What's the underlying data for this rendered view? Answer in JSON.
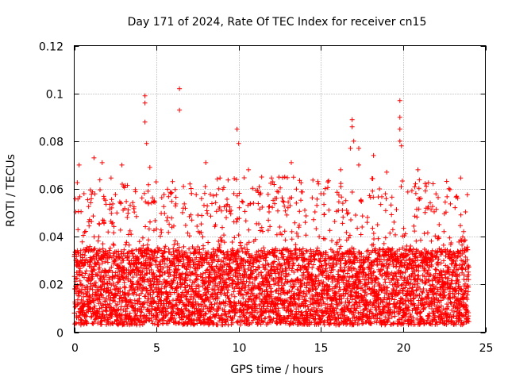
{
  "chart_data": {
    "type": "scatter",
    "title": "Day 171 of 2024, Rate Of TEC Index for receiver cn15",
    "xlabel": "GPS time / hours",
    "ylabel": "ROTI / TECUs",
    "xlim": [
      0,
      25
    ],
    "ylim": [
      0,
      0.12
    ],
    "xticks": [
      0,
      5,
      10,
      15,
      20,
      25
    ],
    "xtick_labels": [
      "0",
      "5",
      "10",
      "15",
      "20",
      "25"
    ],
    "yticks": [
      0,
      0.02,
      0.04,
      0.06,
      0.08,
      0.1,
      0.12
    ],
    "ytick_labels": [
      "0",
      "0.02",
      "0.04",
      "0.06",
      "0.08",
      "0.1",
      "0.12"
    ],
    "grid": true,
    "marker": "plus",
    "marker_color": "#ff0000",
    "data_time_range_hours": [
      0,
      24
    ],
    "typical_value_range": [
      0.003,
      0.035
    ],
    "point_density": "dense (~thousands of points)",
    "notable_points": [
      {
        "x": 4.3,
        "y": 0.099
      },
      {
        "x": 4.3,
        "y": 0.096
      },
      {
        "x": 4.3,
        "y": 0.088
      },
      {
        "x": 4.4,
        "y": 0.079
      },
      {
        "x": 6.4,
        "y": 0.102
      },
      {
        "x": 6.4,
        "y": 0.093
      },
      {
        "x": 8.0,
        "y": 0.071
      },
      {
        "x": 9.9,
        "y": 0.085
      },
      {
        "x": 10.0,
        "y": 0.079
      },
      {
        "x": 10.6,
        "y": 0.068
      },
      {
        "x": 11.4,
        "y": 0.065
      },
      {
        "x": 12.8,
        "y": 0.065
      },
      {
        "x": 13.2,
        "y": 0.071
      },
      {
        "x": 15.0,
        "y": 0.058
      },
      {
        "x": 16.2,
        "y": 0.068
      },
      {
        "x": 16.9,
        "y": 0.089
      },
      {
        "x": 16.9,
        "y": 0.086
      },
      {
        "x": 17.0,
        "y": 0.08
      },
      {
        "x": 16.8,
        "y": 0.077
      },
      {
        "x": 17.3,
        "y": 0.077
      },
      {
        "x": 17.3,
        "y": 0.07
      },
      {
        "x": 18.2,
        "y": 0.074
      },
      {
        "x": 19.0,
        "y": 0.067
      },
      {
        "x": 19.8,
        "y": 0.097
      },
      {
        "x": 19.8,
        "y": 0.09
      },
      {
        "x": 19.8,
        "y": 0.085
      },
      {
        "x": 19.8,
        "y": 0.08
      },
      {
        "x": 19.9,
        "y": 0.078
      },
      {
        "x": 20.9,
        "y": 0.068
      },
      {
        "x": 0.3,
        "y": 0.07
      },
      {
        "x": 1.2,
        "y": 0.073
      },
      {
        "x": 1.7,
        "y": 0.071
      },
      {
        "x": 2.9,
        "y": 0.07
      },
      {
        "x": 4.6,
        "y": 0.069
      }
    ]
  }
}
